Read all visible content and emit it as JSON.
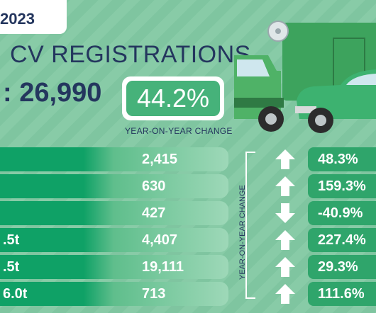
{
  "header": {
    "year": "2023"
  },
  "title": "CV REGISTRATIONS",
  "total": ": 26,990",
  "yoy": {
    "value": "44.2%",
    "label": "YEAR-ON-YEAR CHANGE"
  },
  "side_label": "YEAR-ON-YEAR CHANGE",
  "rows": [
    {
      "segment": "",
      "value": "2,415",
      "direction": "up",
      "change": "48.3%"
    },
    {
      "segment": "",
      "value": "630",
      "direction": "up",
      "change": "159.3%"
    },
    {
      "segment": "",
      "value": "427",
      "direction": "down",
      "change": "-40.9%"
    },
    {
      "segment": ".5t",
      "value": "4,407",
      "direction": "up",
      "change": "227.4%"
    },
    {
      "segment": ".5t",
      "value": "19,111",
      "direction": "up",
      "change": "29.3%"
    },
    {
      "segment": "6.0t",
      "value": "713",
      "direction": "up",
      "change": "111.6%"
    }
  ],
  "colors": {
    "navy": "#24365e",
    "green": "#0fa166",
    "accent": "#46b27a"
  }
}
